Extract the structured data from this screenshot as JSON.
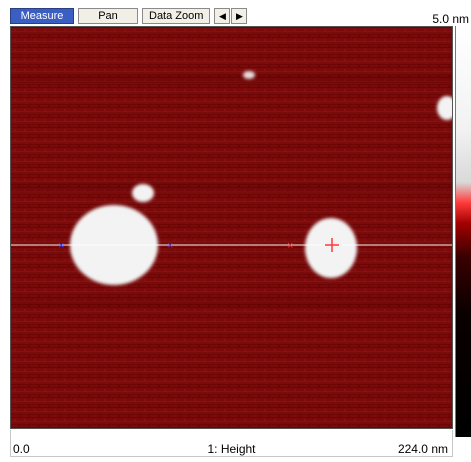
{
  "toolbar": {
    "measure_label": "Measure",
    "pan_label": "Pan",
    "data_zoom_label": "Data Zoom",
    "prev_label": "◀",
    "next_label": "▶"
  },
  "scale": {
    "max_label": "5.0 nm",
    "x_start": "0.0",
    "x_end": "224.0 nm",
    "channel": "1: Height"
  },
  "colors": {
    "accent_active": "#3b5ec3",
    "background": "#7a0a0a",
    "particle": "#f2f2f2"
  },
  "icons": {
    "prev": "left-arrow-icon",
    "next": "right-arrow-icon",
    "cursor_mark": "red-plus-icon"
  }
}
